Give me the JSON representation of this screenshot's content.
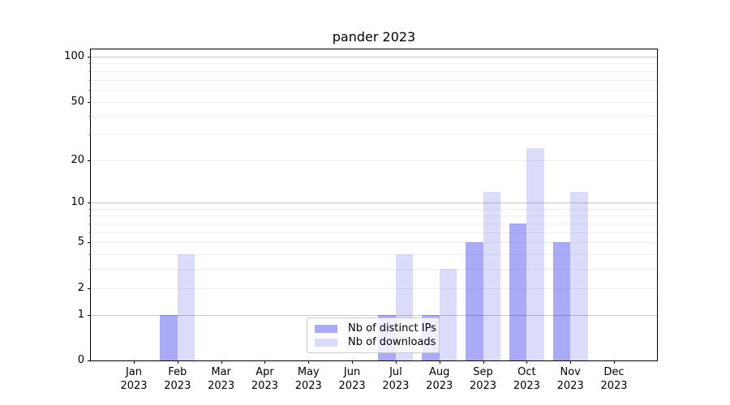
{
  "title": "pander 2023",
  "chart_data": {
    "type": "bar",
    "title": "pander 2023",
    "categories": [
      "Jan",
      "Feb",
      "Mar",
      "Apr",
      "May",
      "Jun",
      "Jul",
      "Aug",
      "Sep",
      "Oct",
      "Nov",
      "Dec"
    ],
    "year": "2023",
    "series": [
      {
        "name": "Nb of distinct IPs",
        "color": "#aaaaf6",
        "values": [
          0,
          1,
          0,
          0,
          0,
          0,
          1,
          1,
          5,
          7,
          5,
          0
        ]
      },
      {
        "name": "Nb of downloads",
        "color": "#dbdbfa",
        "values": [
          0,
          4,
          0,
          0,
          0,
          0,
          4,
          3,
          12,
          24,
          12,
          0
        ]
      }
    ],
    "xlabel": "",
    "ylabel": "",
    "y_scale": "log1p",
    "ylim": [
      0,
      112
    ],
    "y_ticks": [
      0,
      1,
      2,
      5,
      10,
      20,
      50,
      100
    ],
    "y_major_gridlines": [
      1,
      10,
      100
    ],
    "y_minor_gridlines": [
      2,
      3,
      4,
      5,
      6,
      7,
      8,
      9,
      20,
      30,
      40,
      50,
      60,
      70,
      80,
      90
    ],
    "grid": true,
    "legend_position": "lower center",
    "colors": {
      "axis": "#000000",
      "background": "#ffffff",
      "major_grid": "rgba(0,0,0,0.22)",
      "minor_grid": "rgba(0,0,0,0.055)"
    }
  }
}
